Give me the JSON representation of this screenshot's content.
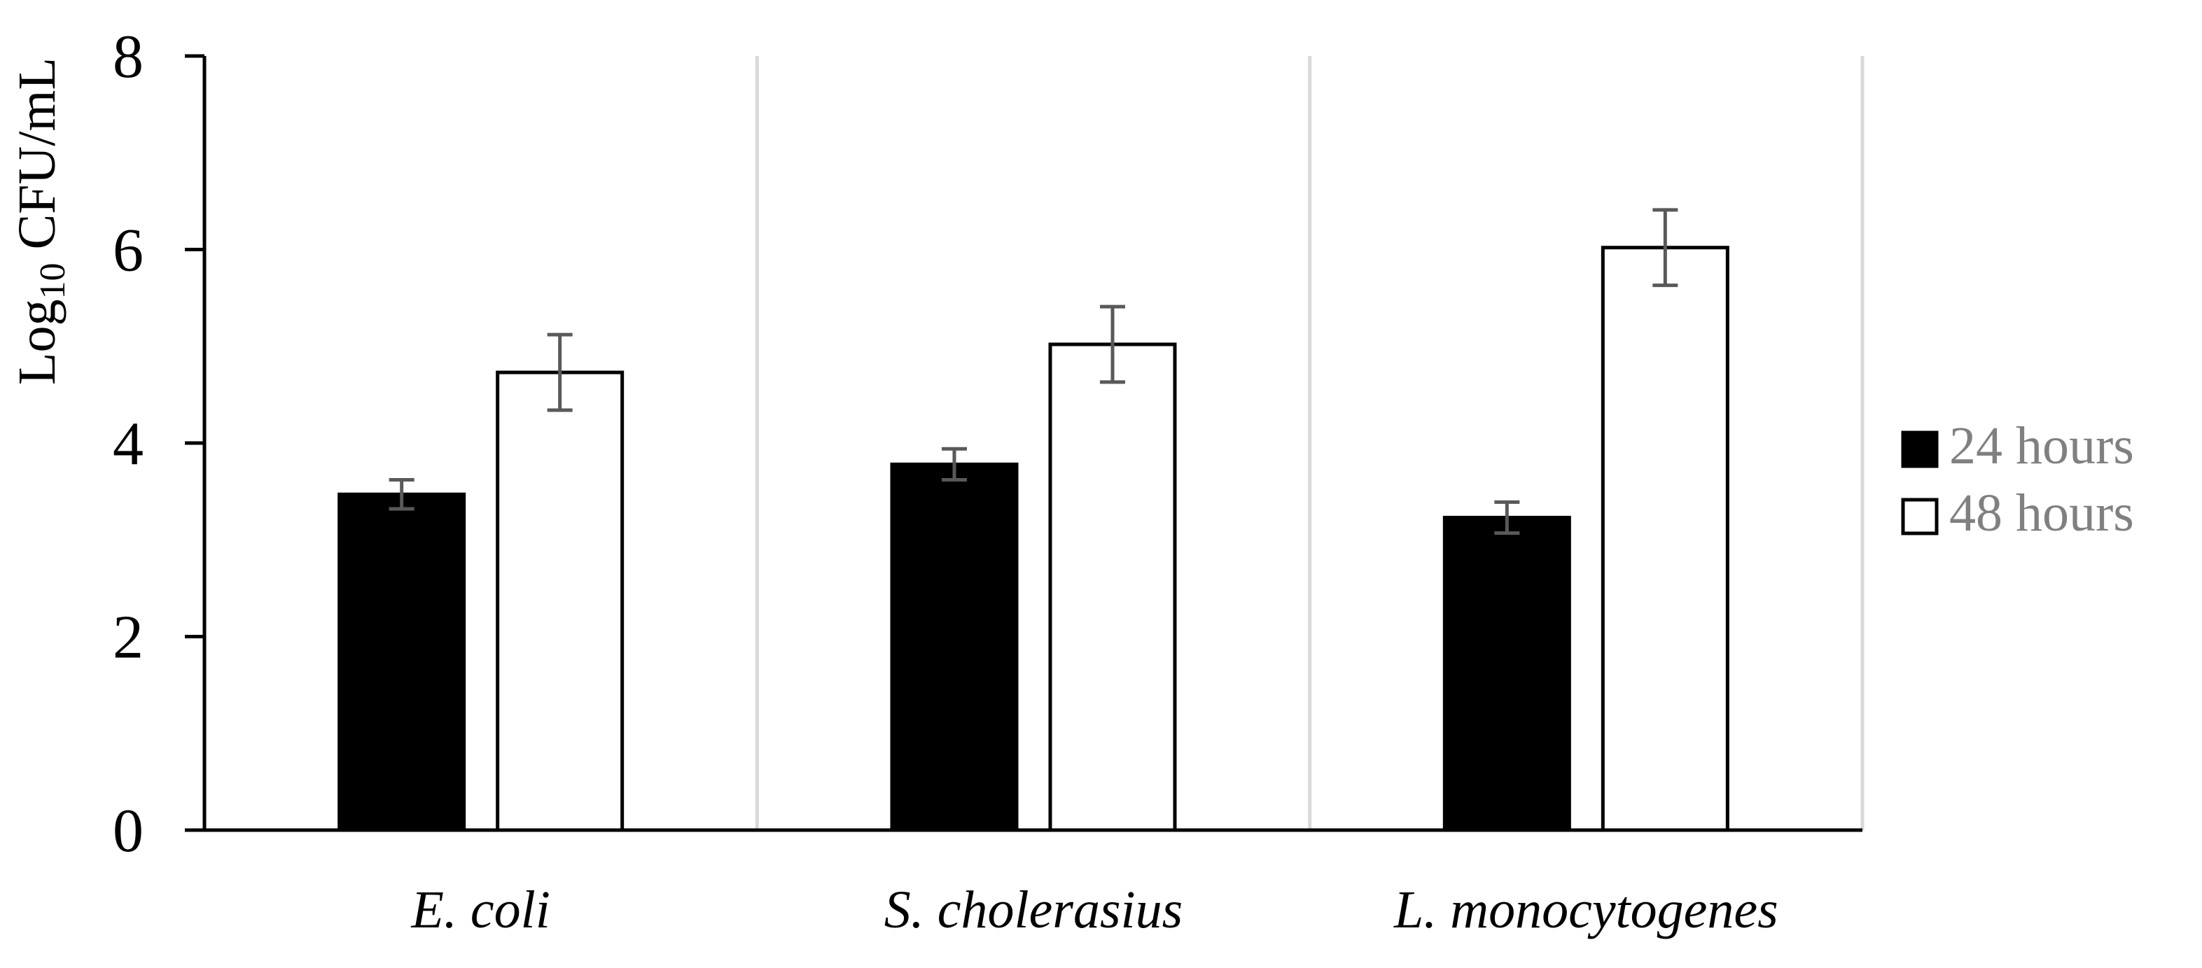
{
  "chart_data": {
    "type": "bar",
    "title": "",
    "xlabel": "",
    "ylabel": {
      "main": "Log",
      "subscript": "10",
      "suffix": " CFU/mL"
    },
    "ylim": [
      0,
      8
    ],
    "yticks": [
      "0",
      "2",
      "4",
      "6",
      "8"
    ],
    "categories": [
      "E. coli",
      "S. cholerasius",
      "L. monocytogenes"
    ],
    "series": [
      {
        "name": "24 hours",
        "fill": "#000000",
        "values": [
          3.47,
          3.78,
          3.23
        ],
        "errors": [
          0.15,
          0.16,
          0.16
        ]
      },
      {
        "name": "48 hours",
        "fill": "#ffffff",
        "values": [
          4.73,
          5.02,
          6.02
        ],
        "errors": [
          0.39,
          0.39,
          0.39
        ]
      }
    ],
    "legend": {
      "position": "right",
      "entries": [
        "24 hours",
        "48 hours"
      ]
    },
    "colors": {
      "axis": "#000000",
      "separator": "#d9d9d9",
      "error_bar": "#595959",
      "legend_text": "#808080"
    }
  }
}
